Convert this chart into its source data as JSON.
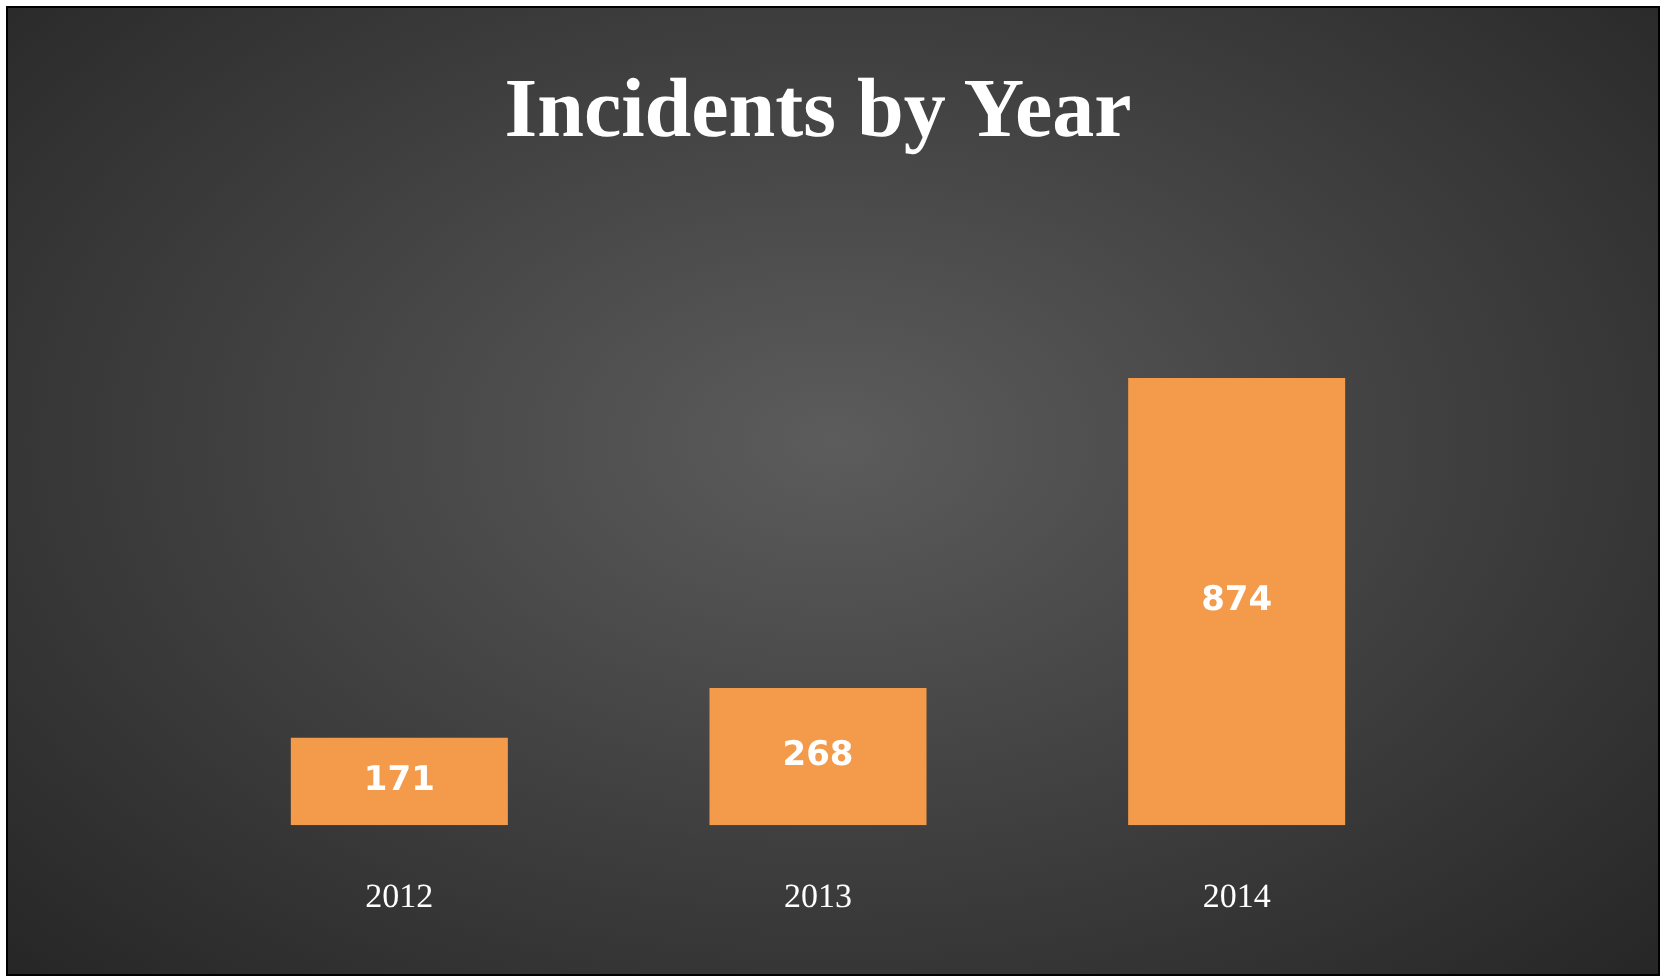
{
  "chart_data": {
    "type": "bar",
    "title": "Incidents by Year",
    "categories": [
      "2012",
      "2013",
      "2014"
    ],
    "values": [
      171,
      268,
      874
    ],
    "color": "#f39a4b",
    "data_labels": true
  }
}
